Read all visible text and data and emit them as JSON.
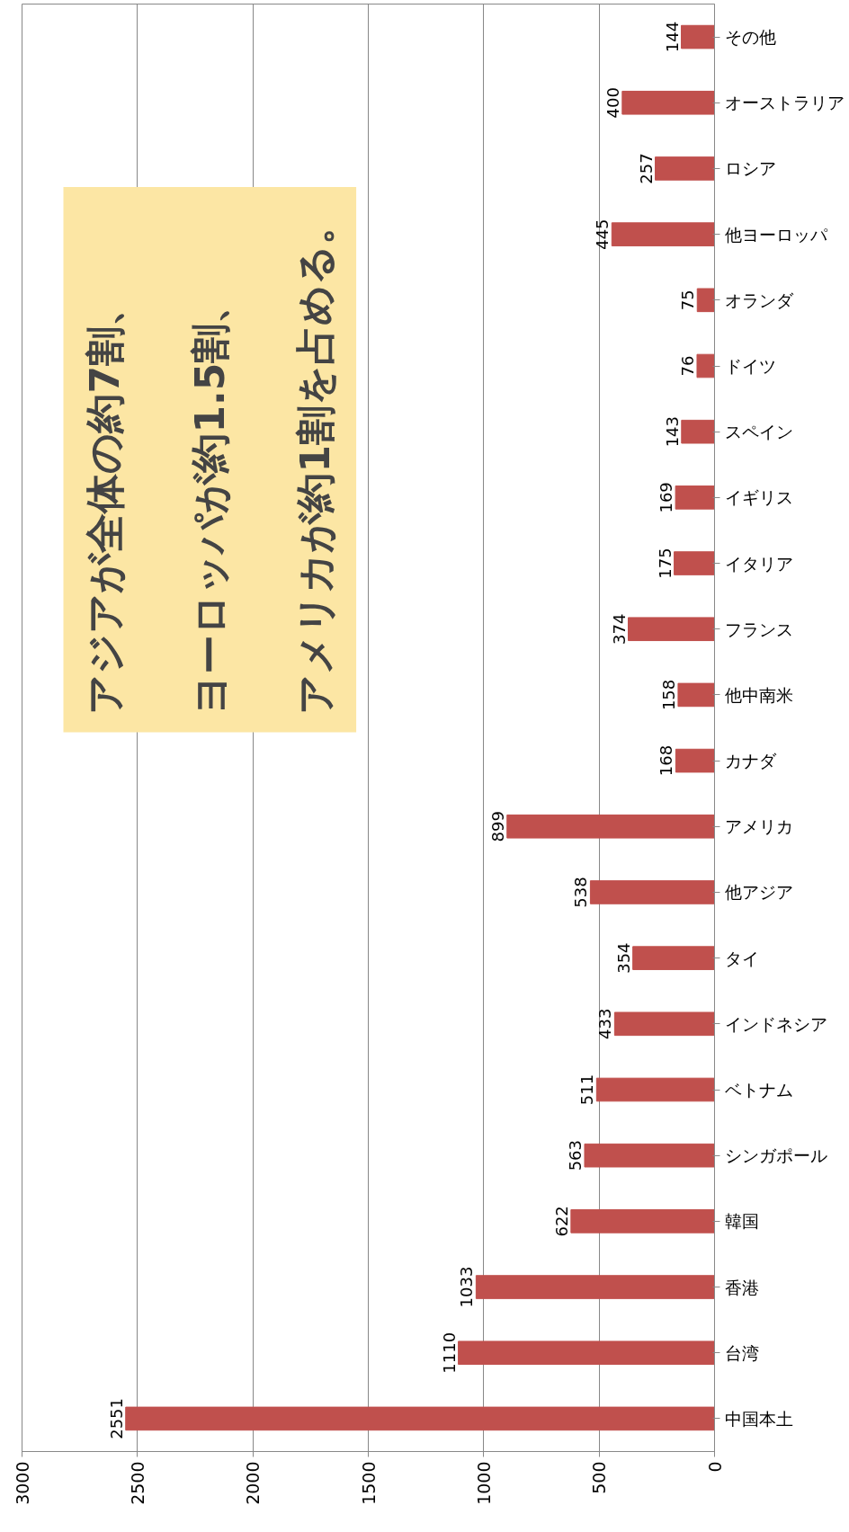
{
  "chart_data": {
    "type": "bar",
    "orientation": "horizontal",
    "categories": [
      "その他",
      "オーストラリア",
      "ロシア",
      "他ヨーロッパ",
      "オランダ",
      "ドイツ",
      "スペイン",
      "イギリス",
      "イタリア",
      "フランス",
      "他中南米",
      "カナダ",
      "アメリカ",
      "他アジア",
      "タイ",
      "インドネシア",
      "ベトナム",
      "シンガポール",
      "韓国",
      "香港",
      "台湾",
      "中国本土"
    ],
    "values": [
      144,
      400,
      257,
      445,
      75,
      76,
      143,
      169,
      175,
      374,
      158,
      168,
      899,
      538,
      354,
      433,
      511,
      563,
      622,
      1033,
      1110,
      2551
    ],
    "color": "#c0504d",
    "xlim": [
      3000,
      0
    ],
    "xticks": [
      3000,
      2500,
      2000,
      1500,
      1000,
      500,
      0
    ],
    "grid": "x",
    "data_labels": true,
    "annotations": [
      "アジアが全体の約7割、",
      "ヨーロッパが約1.5割、",
      "アメリカが約1割を占める。"
    ]
  }
}
